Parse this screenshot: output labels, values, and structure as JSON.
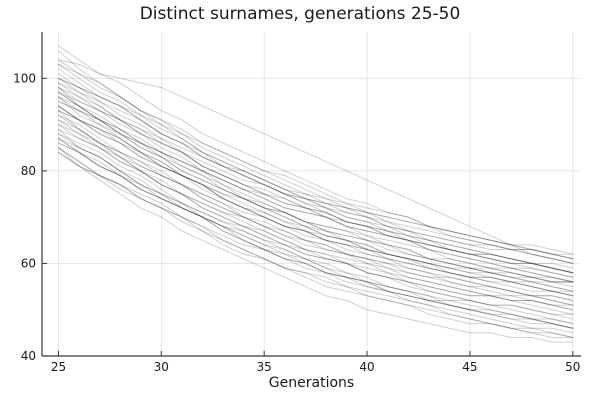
{
  "chart_data": {
    "type": "line",
    "title": "Distinct surnames, generations 25-50",
    "xlabel": "Generations",
    "ylabel": "",
    "xlim": [
      24.2,
      50.4
    ],
    "ylim": [
      40,
      110
    ],
    "x_ticks": [
      25,
      30,
      35,
      40,
      45,
      50
    ],
    "y_ticks": [
      40,
      60,
      80,
      100
    ],
    "grid": true,
    "legend": false,
    "x_start": 25,
    "x_step": 1,
    "line_color": "#000000",
    "line_alpha": 0.19,
    "line_width": 1,
    "grid_color": "#e4e4e4",
    "axis_color": "#36363d",
    "text_color": "#1a1a1a",
    "background": "#ffffff",
    "series_count": 50,
    "series": [
      [
        94,
        91,
        88,
        86,
        83,
        81,
        79,
        77,
        74,
        72,
        70,
        68,
        67,
        65,
        64,
        62,
        61,
        60,
        59,
        58,
        57,
        56,
        55,
        54,
        54,
        53
      ],
      [
        99,
        97,
        94,
        91,
        89,
        86,
        84,
        81,
        79,
        77,
        76,
        74,
        72,
        71,
        69,
        68,
        67,
        65,
        64,
        63,
        62,
        62,
        61,
        60,
        59,
        58
      ],
      [
        89,
        85,
        83,
        80,
        77,
        75,
        72,
        70,
        68,
        67,
        65,
        63,
        61,
        59,
        58,
        57,
        55,
        54,
        53,
        52,
        52,
        51,
        50,
        49,
        48,
        47
      ],
      [
        103,
        100,
        97,
        95,
        92,
        89,
        87,
        84,
        82,
        80,
        78,
        76,
        74,
        72,
        70,
        69,
        67,
        66,
        64,
        63,
        62,
        61,
        60,
        59,
        58,
        57
      ],
      [
        91,
        88,
        86,
        84,
        82,
        80,
        77,
        74,
        72,
        70,
        68,
        66,
        65,
        64,
        62,
        61,
        60,
        59,
        58,
        56,
        55,
        54,
        53,
        53,
        52,
        51
      ],
      [
        97,
        94,
        91,
        88,
        86,
        84,
        82,
        80,
        78,
        76,
        75,
        73,
        72,
        70,
        68,
        67,
        66,
        65,
        64,
        63,
        62,
        62,
        61,
        60,
        59,
        58
      ],
      [
        86,
        84,
        81,
        79,
        76,
        74,
        72,
        70,
        68,
        65,
        63,
        62,
        60,
        58,
        57,
        56,
        54,
        53,
        52,
        52,
        51,
        50,
        49,
        48,
        48,
        47
      ],
      [
        100,
        97,
        95,
        92,
        90,
        87,
        85,
        83,
        81,
        80,
        78,
        76,
        74,
        73,
        72,
        70,
        69,
        67,
        66,
        65,
        64,
        63,
        63,
        62,
        61,
        60
      ],
      [
        93,
        91,
        89,
        87,
        84,
        81,
        79,
        76,
        74,
        72,
        70,
        68,
        67,
        66,
        65,
        64,
        62,
        61,
        60,
        59,
        58,
        57,
        56,
        56,
        55,
        54
      ],
      [
        96,
        93,
        91,
        89,
        86,
        84,
        81,
        79,
        76,
        74,
        73,
        71,
        69,
        67,
        66,
        65,
        64,
        63,
        61,
        60,
        59,
        59,
        58,
        57,
        56,
        56
      ],
      [
        104,
        103,
        101,
        100,
        99,
        98,
        96,
        94,
        92,
        90,
        88,
        86,
        84,
        82,
        80,
        78,
        76,
        74,
        72,
        70,
        68,
        66,
        64,
        62,
        61,
        60
      ],
      [
        98,
        94,
        91,
        88,
        85,
        83,
        80,
        78,
        76,
        74,
        72,
        70,
        68,
        66,
        65,
        63,
        62,
        61,
        60,
        59,
        58,
        58,
        57,
        57,
        56,
        56
      ],
      [
        87,
        84,
        81,
        79,
        76,
        74,
        72,
        70,
        67,
        65,
        63,
        61,
        60,
        58,
        57,
        55,
        54,
        53,
        52,
        51,
        50,
        49,
        48,
        47,
        47,
        46
      ],
      [
        92,
        90,
        87,
        84,
        82,
        79,
        77,
        74,
        72,
        70,
        69,
        67,
        65,
        64,
        62,
        61,
        60,
        58,
        57,
        56,
        55,
        55,
        54,
        53,
        52,
        51
      ],
      [
        96,
        92,
        90,
        87,
        84,
        82,
        79,
        77,
        75,
        74,
        72,
        70,
        68,
        66,
        65,
        64,
        62,
        61,
        60,
        59,
        59,
        58,
        57,
        56,
        55,
        54
      ],
      [
        88,
        86,
        84,
        81,
        79,
        76,
        73,
        71,
        69,
        67,
        65,
        64,
        62,
        61,
        60,
        58,
        57,
        56,
        54,
        53,
        52,
        51,
        51,
        50,
        49,
        49
      ],
      [
        101,
        98,
        96,
        94,
        92,
        90,
        87,
        84,
        82,
        80,
        78,
        76,
        75,
        74,
        72,
        71,
        70,
        69,
        68,
        66,
        65,
        64,
        63,
        63,
        62,
        61
      ],
      [
        85,
        82,
        79,
        76,
        74,
        72,
        70,
        68,
        66,
        64,
        63,
        61,
        60,
        58,
        56,
        55,
        54,
        53,
        52,
        51,
        50,
        50,
        49,
        48,
        47,
        46
      ],
      [
        95,
        93,
        90,
        88,
        85,
        83,
        81,
        79,
        77,
        74,
        72,
        71,
        69,
        67,
        66,
        65,
        63,
        62,
        61,
        61,
        60,
        59,
        58,
        57,
        57,
        56
      ],
      [
        90,
        87,
        85,
        82,
        80,
        77,
        75,
        73,
        71,
        70,
        68,
        66,
        64,
        63,
        62,
        60,
        59,
        57,
        56,
        55,
        54,
        53,
        53,
        52,
        51,
        50
      ],
      [
        102,
        99,
        96,
        94,
        91,
        88,
        86,
        83,
        81,
        79,
        77,
        75,
        73,
        71,
        69,
        68,
        66,
        65,
        63,
        62,
        61,
        60,
        59,
        58,
        57,
        56
      ],
      [
        84,
        81,
        79,
        77,
        74,
        72,
        69,
        67,
        64,
        62,
        61,
        59,
        57,
        55,
        54,
        53,
        52,
        51,
        49,
        48,
        47,
        47,
        46,
        45,
        44,
        44
      ],
      [
        98,
        96,
        94,
        91,
        88,
        86,
        84,
        81,
        79,
        77,
        75,
        74,
        72,
        70,
        68,
        67,
        66,
        65,
        63,
        62,
        61,
        60,
        59,
        59,
        58,
        57
      ],
      [
        87,
        84,
        82,
        79,
        76,
        74,
        72,
        70,
        68,
        66,
        64,
        62,
        61,
        60,
        58,
        56,
        55,
        54,
        53,
        51,
        50,
        49,
        49,
        48,
        47,
        46
      ],
      [
        93,
        91,
        88,
        86,
        84,
        81,
        79,
        77,
        74,
        72,
        70,
        68,
        66,
        65,
        64,
        63,
        61,
        59,
        58,
        57,
        56,
        55,
        54,
        53,
        53,
        52
      ],
      [
        107,
        104,
        101,
        99,
        96,
        93,
        91,
        88,
        86,
        84,
        82,
        80,
        78,
        76,
        74,
        73,
        71,
        70,
        68,
        67,
        66,
        65,
        64,
        63,
        62,
        61
      ],
      [
        84,
        81,
        79,
        77,
        75,
        73,
        70,
        67,
        65,
        63,
        61,
        59,
        58,
        57,
        55,
        54,
        53,
        52,
        51,
        49,
        48,
        47,
        46,
        46,
        45,
        44
      ],
      [
        100,
        98,
        96,
        94,
        91,
        88,
        86,
        83,
        81,
        79,
        77,
        75,
        74,
        73,
        72,
        71,
        69,
        68,
        67,
        66,
        65,
        64,
        63,
        63,
        62,
        61
      ],
      [
        91,
        89,
        86,
        84,
        81,
        79,
        77,
        75,
        73,
        70,
        68,
        67,
        65,
        63,
        62,
        61,
        59,
        58,
        57,
        57,
        56,
        55,
        54,
        53,
        53,
        52
      ],
      [
        95,
        93,
        91,
        88,
        86,
        83,
        80,
        78,
        76,
        74,
        72,
        71,
        69,
        68,
        67,
        65,
        64,
        63,
        61,
        60,
        59,
        58,
        58,
        57,
        56,
        56
      ],
      [
        99,
        96,
        93,
        90,
        88,
        86,
        84,
        82,
        80,
        78,
        77,
        75,
        74,
        72,
        70,
        69,
        68,
        67,
        66,
        65,
        64,
        64,
        63,
        62,
        61,
        60
      ],
      [
        88,
        85,
        83,
        80,
        78,
        75,
        73,
        71,
        69,
        68,
        66,
        64,
        62,
        61,
        60,
        58,
        57,
        55,
        54,
        53,
        52,
        51,
        51,
        50,
        49,
        48
      ],
      [
        94,
        91,
        89,
        87,
        84,
        82,
        79,
        77,
        74,
        72,
        71,
        69,
        67,
        65,
        64,
        63,
        62,
        61,
        59,
        58,
        57,
        57,
        56,
        55,
        54,
        54
      ],
      [
        103,
        101,
        99,
        96,
        93,
        91,
        89,
        86,
        84,
        82,
        80,
        79,
        77,
        75,
        73,
        72,
        71,
        70,
        68,
        67,
        66,
        65,
        64,
        64,
        63,
        62
      ],
      [
        86,
        84,
        81,
        79,
        77,
        74,
        72,
        70,
        67,
        65,
        63,
        61,
        59,
        58,
        57,
        56,
        54,
        52,
        51,
        50,
        49,
        48,
        47,
        46,
        46,
        45
      ],
      [
        97,
        94,
        92,
        89,
        86,
        84,
        82,
        80,
        78,
        76,
        74,
        72,
        71,
        70,
        68,
        66,
        65,
        64,
        63,
        61,
        60,
        59,
        59,
        58,
        57,
        56
      ],
      [
        90,
        88,
        85,
        82,
        80,
        77,
        75,
        72,
        70,
        68,
        67,
        65,
        63,
        62,
        60,
        59,
        58,
        56,
        55,
        54,
        53,
        53,
        52,
        51,
        50,
        49
      ],
      [
        104,
        101,
        98,
        96,
        93,
        90,
        88,
        85,
        83,
        81,
        79,
        77,
        75,
        73,
        71,
        70,
        68,
        67,
        65,
        64,
        63,
        62,
        61,
        60,
        59,
        58
      ],
      [
        92,
        89,
        86,
        83,
        81,
        79,
        77,
        75,
        73,
        71,
        70,
        68,
        67,
        65,
        63,
        62,
        61,
        60,
        59,
        58,
        57,
        57,
        56,
        55,
        54,
        53
      ],
      [
        89,
        87,
        85,
        83,
        80,
        77,
        75,
        72,
        70,
        68,
        66,
        64,
        63,
        62,
        61,
        60,
        58,
        57,
        56,
        55,
        54,
        53,
        52,
        52,
        51,
        50
      ],
      [
        96,
        94,
        91,
        89,
        87,
        84,
        82,
        80,
        77,
        75,
        73,
        71,
        69,
        68,
        67,
        66,
        64,
        62,
        61,
        60,
        59,
        58,
        57,
        56,
        56,
        55
      ],
      [
        85,
        81,
        78,
        75,
        72,
        70,
        67,
        65,
        63,
        61,
        59,
        57,
        55,
        53,
        52,
        50,
        49,
        48,
        47,
        46,
        45,
        45,
        44,
        44,
        43,
        43
      ],
      [
        93,
        89,
        86,
        83,
        80,
        78,
        75,
        73,
        71,
        69,
        67,
        65,
        63,
        61,
        60,
        58,
        57,
        56,
        55,
        54,
        53,
        53,
        52,
        52,
        51,
        51
      ],
      [
        98,
        95,
        93,
        91,
        89,
        87,
        84,
        81,
        79,
        77,
        75,
        73,
        72,
        71,
        69,
        68,
        67,
        66,
        65,
        63,
        62,
        61,
        60,
        60,
        59,
        58
      ],
      [
        87,
        85,
        83,
        80,
        77,
        75,
        73,
        70,
        68,
        66,
        64,
        63,
        61,
        59,
        57,
        56,
        55,
        54,
        52,
        51,
        50,
        49,
        48,
        48,
        47,
        46
      ],
      [
        106,
        102,
        99,
        96,
        93,
        91,
        88,
        86,
        84,
        82,
        80,
        78,
        76,
        74,
        73,
        71,
        70,
        69,
        68,
        67,
        66,
        65,
        64,
        63,
        62,
        62
      ],
      [
        94,
        91,
        89,
        86,
        83,
        81,
        79,
        77,
        75,
        73,
        71,
        69,
        68,
        67,
        65,
        63,
        62,
        61,
        60,
        58,
        57,
        56,
        56,
        55,
        54,
        53
      ],
      [
        100,
        98,
        95,
        93,
        91,
        88,
        86,
        84,
        81,
        79,
        77,
        75,
        73,
        72,
        71,
        70,
        68,
        66,
        65,
        64,
        63,
        62,
        61,
        60,
        60,
        59
      ],
      [
        85,
        82,
        79,
        77,
        74,
        72,
        70,
        68,
        65,
        63,
        61,
        59,
        58,
        56,
        55,
        53,
        52,
        51,
        50,
        49,
        48,
        47,
        46,
        45,
        45,
        44
      ],
      [
        97,
        95,
        93,
        91,
        88,
        85,
        83,
        80,
        78,
        76,
        74,
        72,
        71,
        70,
        69,
        68,
        66,
        65,
        64,
        63,
        62,
        61,
        60,
        60,
        59,
        58
      ]
    ]
  }
}
